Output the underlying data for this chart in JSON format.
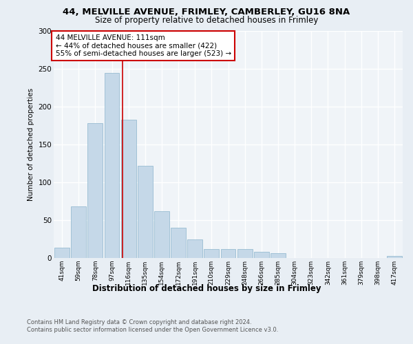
{
  "title_line1": "44, MELVILLE AVENUE, FRIMLEY, CAMBERLEY, GU16 8NA",
  "title_line2": "Size of property relative to detached houses in Frimley",
  "xlabel": "Distribution of detached houses by size in Frimley",
  "ylabel": "Number of detached properties",
  "bar_labels": [
    "41sqm",
    "59sqm",
    "78sqm",
    "97sqm",
    "116sqm",
    "135sqm",
    "154sqm",
    "172sqm",
    "191sqm",
    "210sqm",
    "229sqm",
    "248sqm",
    "266sqm",
    "285sqm",
    "304sqm",
    "323sqm",
    "342sqm",
    "361sqm",
    "379sqm",
    "398sqm",
    "417sqm"
  ],
  "bar_heights": [
    14,
    68,
    178,
    245,
    183,
    122,
    62,
    40,
    25,
    12,
    12,
    12,
    8,
    6,
    0,
    0,
    0,
    0,
    0,
    0,
    3
  ],
  "bar_color": "#c5d8e8",
  "bar_edge_color": "#8ab4cc",
  "annotation_title": "44 MELVILLE AVENUE: 111sqm",
  "annotation_line2": "← 44% of detached houses are smaller (422)",
  "annotation_line3": "55% of semi-detached houses are larger (523) →",
  "vline_x": 3.65,
  "vline_color": "#cc0000",
  "footer_line1": "Contains HM Land Registry data © Crown copyright and database right 2024.",
  "footer_line2": "Contains public sector information licensed under the Open Government Licence v3.0.",
  "bg_color": "#e8eef4",
  "plot_bg_color": "#f0f4f8",
  "grid_color": "#ffffff",
  "ylim": [
    0,
    300
  ]
}
